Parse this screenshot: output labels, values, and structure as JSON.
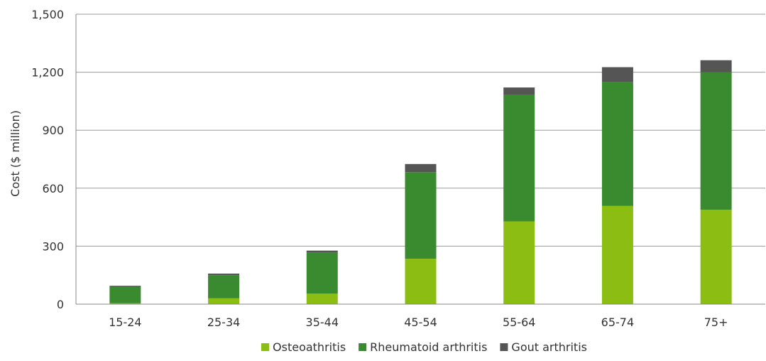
{
  "chart_data": {
    "type": "bar",
    "stacked": true,
    "title": "",
    "xlabel": "",
    "ylabel": "Cost ($ million)",
    "ylim": [
      0,
      1500
    ],
    "yticks": [
      0,
      300,
      600,
      900,
      1200,
      1500
    ],
    "ytick_labels": [
      "0",
      "300",
      "600",
      "900",
      "1,200",
      "1,500"
    ],
    "grid": "horizontal",
    "legend_position": "bottom",
    "categories": [
      "15-24",
      "25-34",
      "35-44",
      "45-54",
      "55-64",
      "65-74",
      "75+"
    ],
    "series": [
      {
        "name": "Osteoathritis",
        "color": "#8cbd12",
        "values": [
          5,
          30,
          55,
          235,
          428,
          508,
          488
        ]
      },
      {
        "name": "Rheumatoid arthritis",
        "color": "#3a8a2f",
        "values": [
          85,
          120,
          212,
          448,
          655,
          640,
          712
        ]
      },
      {
        "name": "Gout arthritis",
        "color": "#555555",
        "values": [
          5,
          8,
          10,
          42,
          38,
          78,
          62
        ]
      }
    ]
  }
}
